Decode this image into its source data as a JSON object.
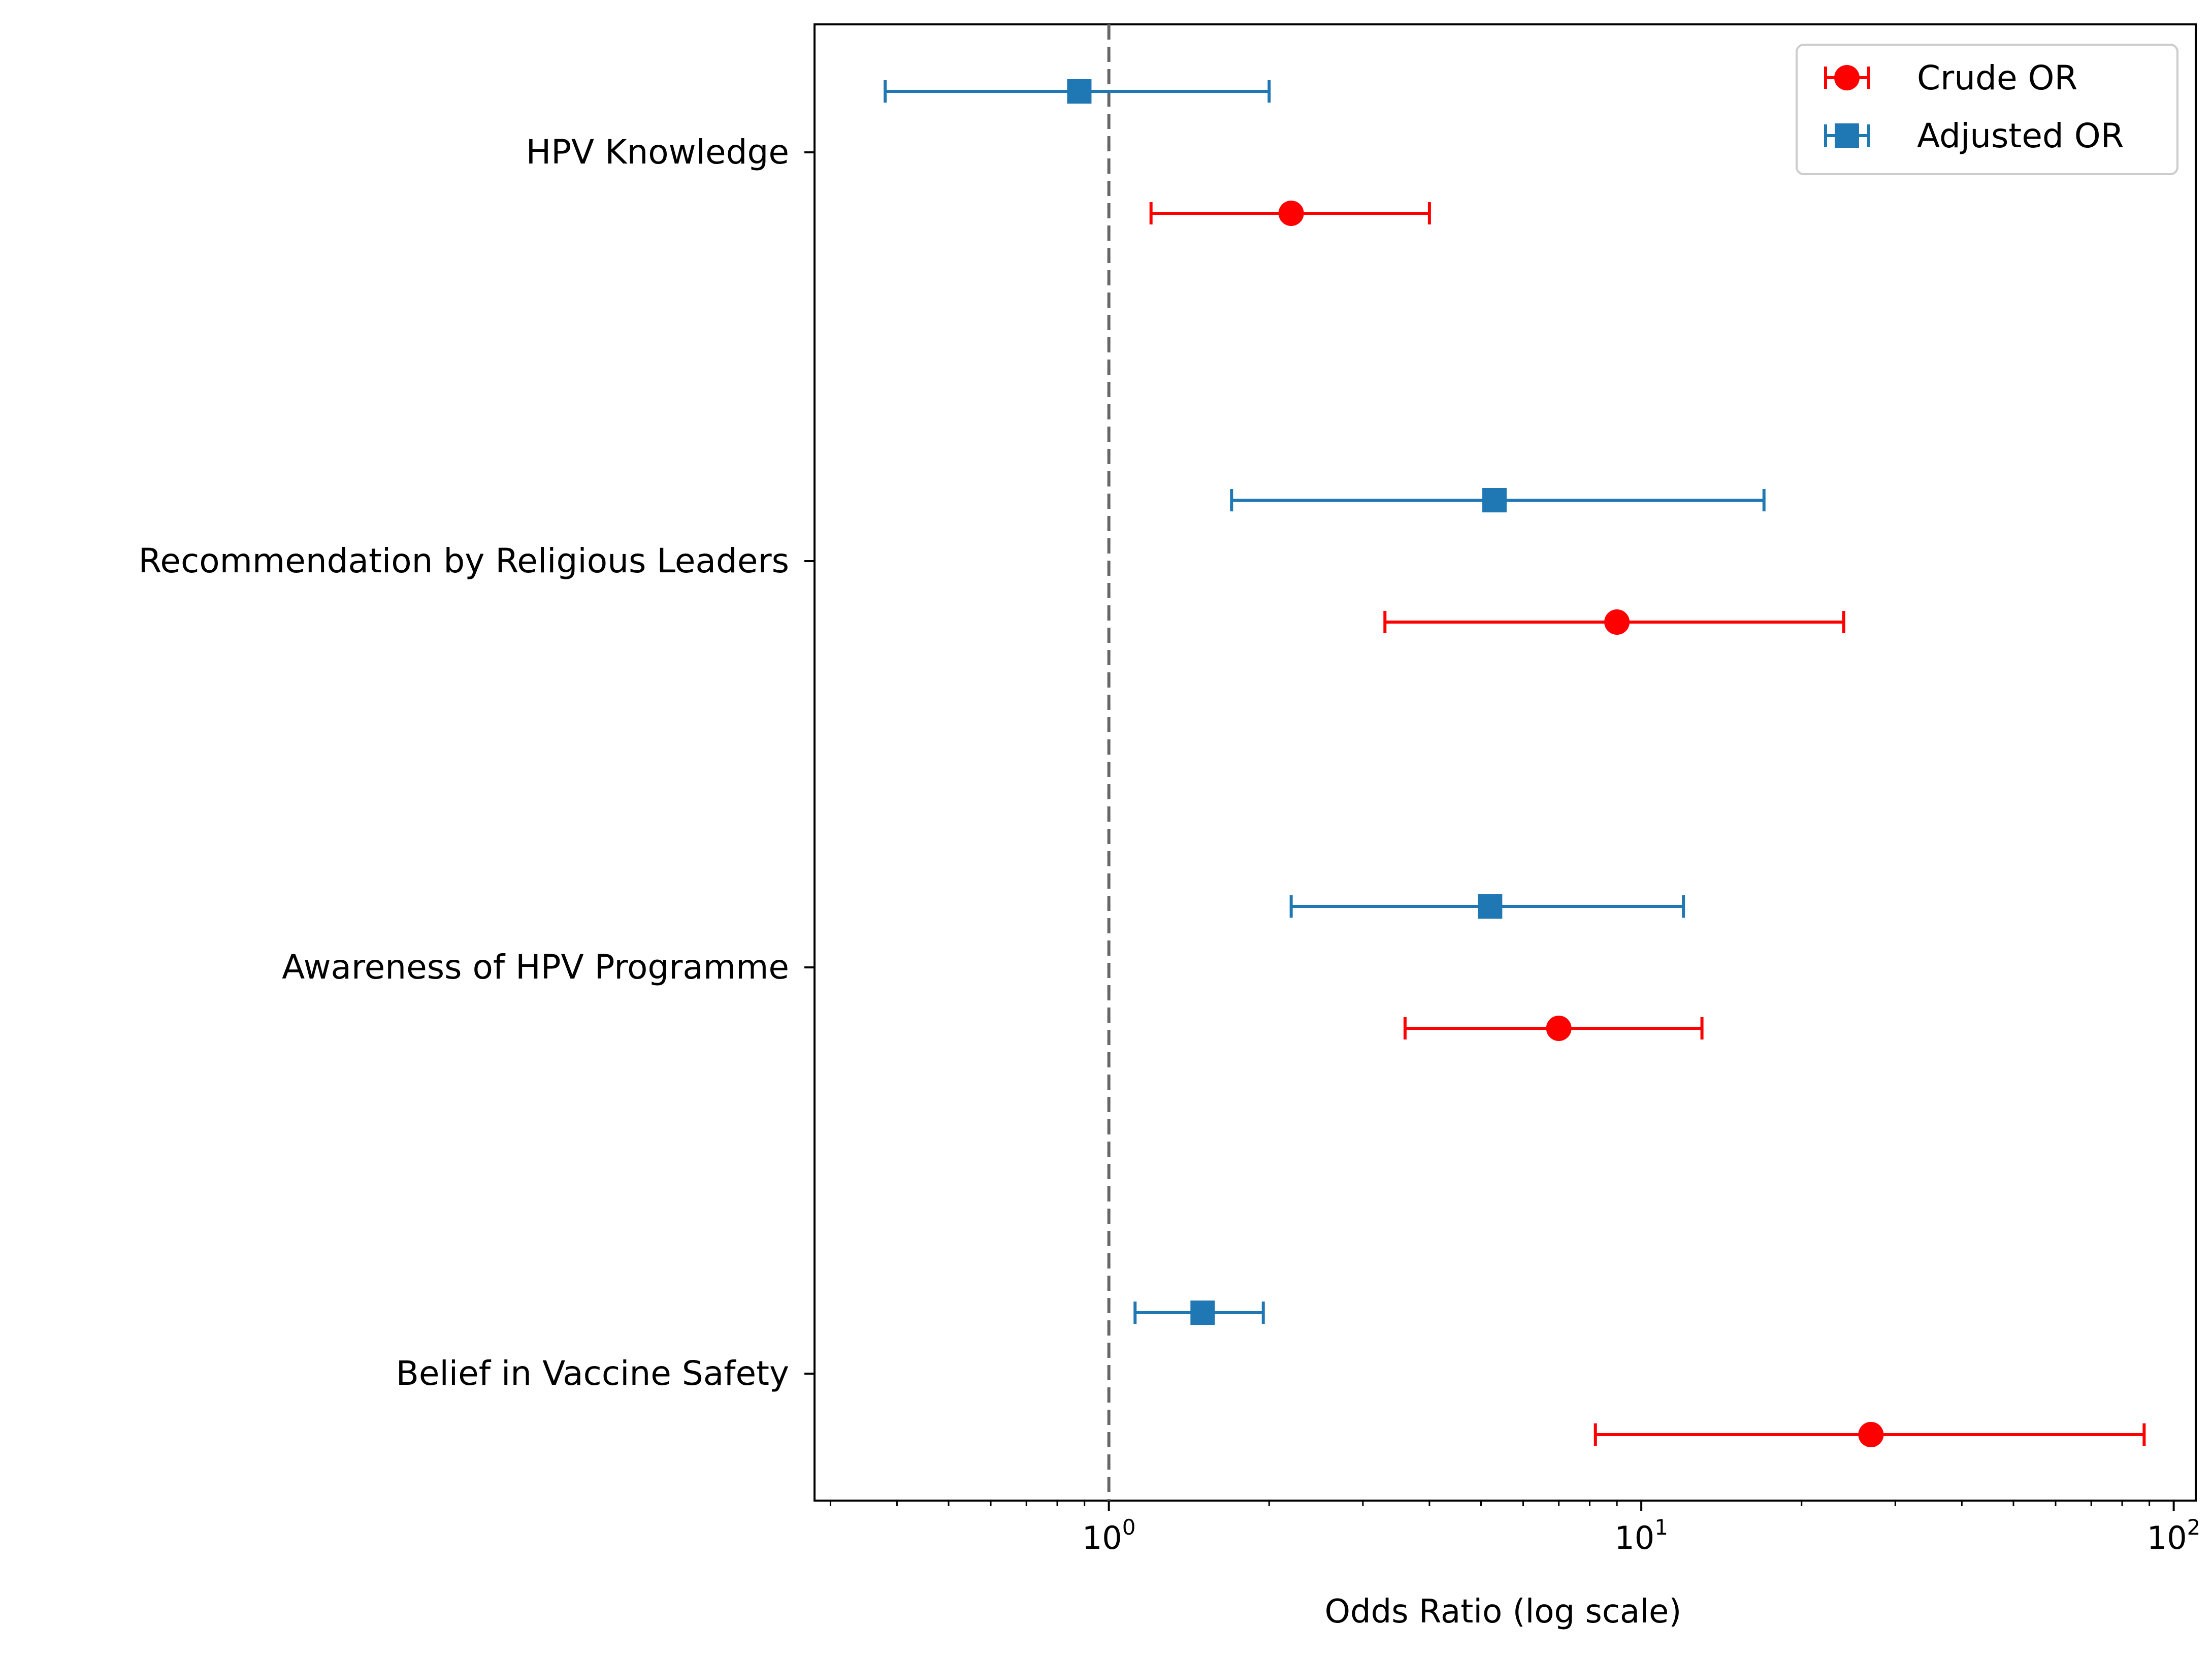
{
  "chart_data": {
    "type": "forest-plot",
    "title": "",
    "xlabel": "Odds Ratio (log scale)",
    "ylabel": "",
    "xscale": "log",
    "xlim": [
      0.28,
      110
    ],
    "reference_line": {
      "value": 1,
      "style": "dashed"
    },
    "x_ticks": [
      {
        "value": 1,
        "base": "10",
        "exp": "0"
      },
      {
        "value": 10,
        "base": "10",
        "exp": "1"
      },
      {
        "value": 100,
        "base": "10",
        "exp": "2"
      }
    ],
    "categories": [
      "HPV Knowledge",
      "Recommendation by Religious Leaders",
      "Awareness of HPV Programme",
      "Belief in Vaccine Safety"
    ],
    "series": [
      {
        "name": "Crude OR",
        "color": "#ff0000",
        "marker": "circle",
        "points": [
          {
            "or": 2.2,
            "lower": 1.2,
            "upper": 4.0
          },
          {
            "or": 9.0,
            "lower": 3.3,
            "upper": 24.0
          },
          {
            "or": 7.0,
            "lower": 3.6,
            "upper": 13.0
          },
          {
            "or": 27.0,
            "lower": 8.2,
            "upper": 88.0
          }
        ]
      },
      {
        "name": "Adjusted OR",
        "color": "#1f77b4",
        "marker": "square",
        "points": [
          {
            "or": 0.88,
            "lower": 0.38,
            "upper": 2.0
          },
          {
            "or": 5.3,
            "lower": 1.7,
            "upper": 17.0
          },
          {
            "or": 5.2,
            "lower": 2.2,
            "upper": 12.0
          },
          {
            "or": 1.5,
            "lower": 1.12,
            "upper": 1.95
          }
        ]
      }
    ],
    "legend": {
      "position": "top-right",
      "entries": [
        "Crude OR",
        "Adjusted OR"
      ]
    }
  }
}
